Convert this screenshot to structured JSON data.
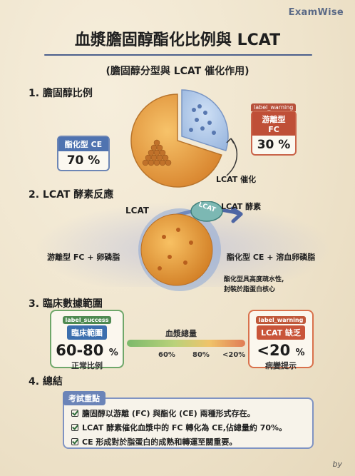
{
  "brand": "ExamWise",
  "title": "血漿膽固醇酯化比例與 LCAT",
  "subtitle": "(膽固醇分型與 LCAT 催化作用)",
  "section1": {
    "heading": "1. 膽固醇比例",
    "ce_label": "酯化型 CE",
    "ce_value": "70 %",
    "fc_tag": "label_warning",
    "fc_label": "游離型 FC",
    "fc_value": "30 %",
    "arrow_label": "LCAT 催化",
    "ce_fraction": 0.7,
    "fc_fraction": 0.3
  },
  "section2": {
    "heading": "2. LCAT 酵素反應",
    "lcat_arrow": "LCAT",
    "lcat_enzyme": "LCAT 酵素",
    "lcat_on_enzyme": "LCAT",
    "left_label": "游離型 FC + 卵磷脂",
    "right_label": "酯化型 CE + 溶血卵磷脂",
    "note_line1": "酯化型具高度疏水性,",
    "note_line2": "封裝於脂蛋白核心"
  },
  "section3": {
    "heading": "3. 臨床數據範圍",
    "normal_tag": "label_success",
    "normal_head": "臨床範圍",
    "normal_value": "60-80",
    "normal_unit": "%",
    "normal_caption": "正常比例",
    "bar_title": "血漿總量",
    "ticks": [
      "60%",
      "80%",
      "<20%"
    ],
    "deficit_tag": "label_warning",
    "deficit_head": "LCAT 缺乏",
    "deficit_value": "<20",
    "deficit_unit": "%",
    "deficit_caption": "病變提示"
  },
  "section4": {
    "heading": "4. 總結",
    "box_title": "考試重點",
    "items": [
      "膽固醇以游離 (FC) 與酯化 (CE) 兩種形式存在。",
      "LCAT 酵素催化血漿中的 FC 轉化為 CE,佔總量約 70%。",
      "CE 形成對於脂蛋白的成熟和轉運至關重要。"
    ]
  },
  "byline": "by",
  "colors": {
    "accent_blue": "#4f73b0",
    "warning_red": "#bf4f37",
    "success_green": "#3f8a4a",
    "lipoprotein_orange": "#e69a3a"
  }
}
